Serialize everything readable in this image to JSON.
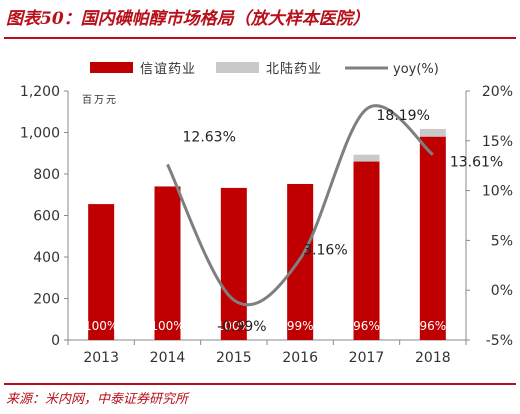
{
  "figure": {
    "title": "图表50：国内碘帕醇市场格局（放大样本医院）",
    "source": "来源：米内网，中泰证券研究所"
  },
  "chart_data": {
    "type": "bar",
    "categories": [
      "2013",
      "2014",
      "2015",
      "2016",
      "2017",
      "2018"
    ],
    "unit_label": "百万元",
    "series": [
      {
        "name": "信谊药业",
        "kind": "bar",
        "axis": "left",
        "color": "#c00000",
        "values": [
          655,
          740,
          733,
          752,
          860,
          980
        ]
      },
      {
        "name": "北陆药业",
        "kind": "bar",
        "axis": "left",
        "color": "#c9c9c9",
        "values": [
          0,
          0,
          0,
          0,
          33,
          37
        ]
      },
      {
        "name": "yoy(%)",
        "kind": "line",
        "axis": "right",
        "color": "#7f7f7f",
        "values": [
          null,
          12.63,
          -0.99,
          3.16,
          18.19,
          13.61
        ]
      }
    ],
    "share_labels": [
      "100%",
      "100%",
      "100%",
      "99%",
      "96%",
      "96%"
    ],
    "yoy_labels": [
      "",
      "12.63%",
      "-0.99%",
      "3.16%",
      "18.19%",
      "13.61%"
    ],
    "y_left": {
      "min": 0,
      "max": 1200,
      "step": 200,
      "ticks": [
        "0",
        "200",
        "400",
        "600",
        "800",
        "1,000",
        "1,200"
      ]
    },
    "y_right": {
      "min": -5,
      "max": 20,
      "step": 5,
      "ticks": [
        "-5%",
        "0%",
        "5%",
        "10%",
        "15%",
        "20%"
      ]
    },
    "legend_position": "top",
    "grid": false
  }
}
